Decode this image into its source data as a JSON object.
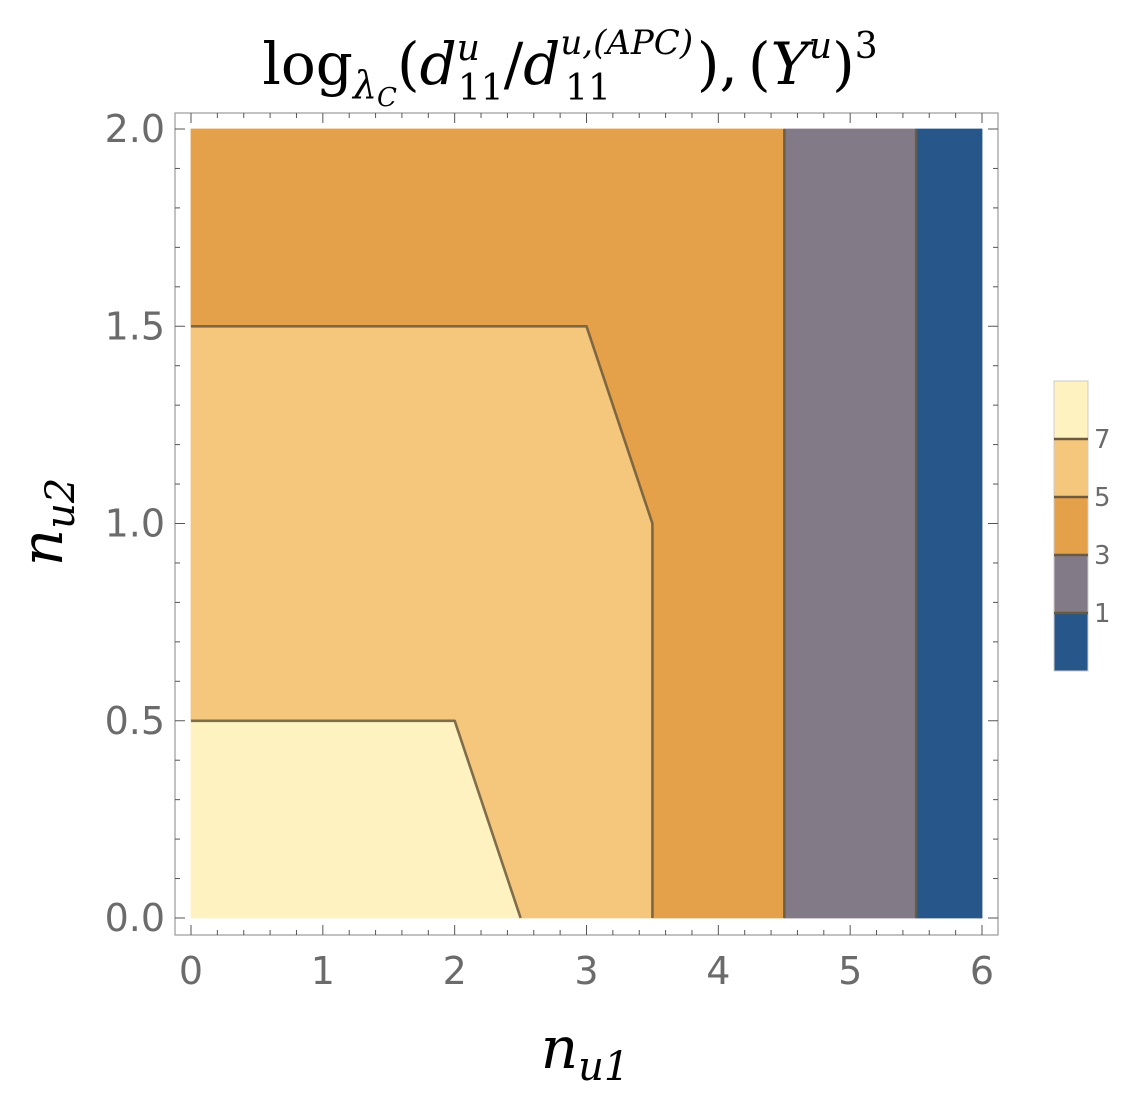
{
  "chart_data": {
    "type": "contour",
    "title": {
      "func": "log",
      "func_sub": "λ",
      "func_sub_sub": "C",
      "open": "(",
      "d1": "d",
      "d1_sup": "u",
      "d1_sub": "11",
      "slash": "/",
      "d2": "d",
      "d2_sup": "u,(APC)",
      "d2_sub": "11",
      "close": "),",
      "y_open": "(",
      "y": "Y",
      "y_sup": "u",
      "y_close": ")",
      "y_exp": "3"
    },
    "xlabel": {
      "base": "n",
      "sub": "u1"
    },
    "ylabel": {
      "base": "n",
      "sub": "u2"
    },
    "xlim": [
      0,
      6
    ],
    "ylim": [
      0,
      2
    ],
    "xticks": [
      "0",
      "1",
      "2",
      "3",
      "4",
      "5",
      "6"
    ],
    "yticks": [
      "0.0",
      "0.5",
      "1.0",
      "1.5",
      "2.0"
    ],
    "regions": [
      {
        "level": "above 7",
        "color": "#fdf2c0",
        "polygon": [
          [
            0,
            0
          ],
          [
            2.5,
            0
          ],
          [
            2,
            0.5
          ],
          [
            0,
            0.5
          ]
        ]
      },
      {
        "level": "5 to 7",
        "color": "#f4c77c",
        "polygon": [
          [
            2.5,
            0
          ],
          [
            3.5,
            0
          ],
          [
            3.5,
            1
          ],
          [
            3,
            1.5
          ],
          [
            0,
            1.5
          ],
          [
            0,
            0.5
          ],
          [
            2,
            0.5
          ]
        ]
      },
      {
        "level": "3 to 5",
        "color": "#e5a04a",
        "polygon": [
          [
            3.5,
            0
          ],
          [
            4.5,
            0
          ],
          [
            4.5,
            2
          ],
          [
            0,
            2
          ],
          [
            0,
            1.5
          ],
          [
            3,
            1.5
          ],
          [
            3.5,
            1
          ]
        ]
      },
      {
        "level": "1 to 3",
        "color": "#827a86",
        "polygon": [
          [
            4.5,
            0
          ],
          [
            5.5,
            0
          ],
          [
            5.5,
            2
          ],
          [
            4.5,
            2
          ]
        ]
      },
      {
        "level": "below 1",
        "color": "#26568a",
        "polygon": [
          [
            5.5,
            0
          ],
          [
            6,
            0
          ],
          [
            6,
            2
          ],
          [
            5.5,
            2
          ]
        ]
      }
    ],
    "contours": [
      {
        "level": 7,
        "points": [
          [
            0,
            0.5
          ],
          [
            2,
            0.5
          ],
          [
            2.5,
            0
          ]
        ]
      },
      {
        "level": 5,
        "points": [
          [
            0,
            1.5
          ],
          [
            3,
            1.5
          ],
          [
            3.5,
            1
          ],
          [
            3.5,
            0
          ]
        ]
      },
      {
        "level": 3,
        "points": [
          [
            4.5,
            0
          ],
          [
            4.5,
            2
          ]
        ]
      },
      {
        "level": 1,
        "points": [
          [
            5.5,
            0
          ],
          [
            5.5,
            2
          ]
        ]
      }
    ],
    "legend": {
      "placement": "right",
      "labels": [
        "7",
        "5",
        "3",
        "1"
      ],
      "colors": [
        "#fdf2c0",
        "#f4c77c",
        "#e5a04a",
        "#827a86",
        "#26568a"
      ]
    },
    "colors": {
      "contour_line": "#6b5a3e",
      "frame": "#9a9a9a",
      "tick_text": "#6b6b6b"
    }
  }
}
